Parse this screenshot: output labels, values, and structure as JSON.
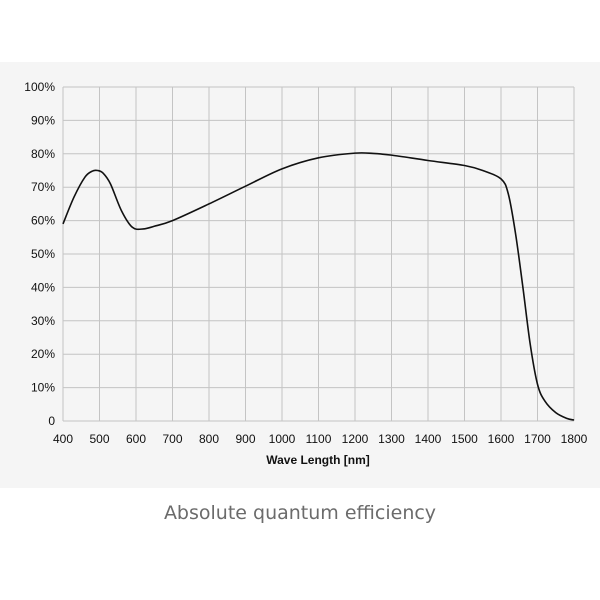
{
  "caption": "Absolute quantum efficiency",
  "chart_data": {
    "type": "line",
    "title": "",
    "xlabel": "Wave Length [nm]",
    "ylabel": "",
    "xlim": [
      400,
      1800
    ],
    "ylim": [
      0,
      100
    ],
    "x_ticks": [
      400,
      500,
      600,
      700,
      800,
      900,
      1000,
      1100,
      1200,
      1300,
      1400,
      1500,
      1600,
      1700,
      1800
    ],
    "x_tick_labels": [
      "400",
      "500",
      "600",
      "700",
      "800",
      "900",
      "1000",
      "1100",
      "1200",
      "1300",
      "1400",
      "1500",
      "1600",
      "1700",
      "1800"
    ],
    "y_ticks": [
      0,
      10,
      20,
      30,
      40,
      50,
      60,
      70,
      80,
      90,
      100
    ],
    "y_tick_labels": [
      "0",
      "10%",
      "20%",
      "30%",
      "40%",
      "50%",
      "60%",
      "70%",
      "80%",
      "90%",
      "100%"
    ],
    "grid": true,
    "line_color": "#111111",
    "grid_color": "#c4c4c4",
    "series": [
      {
        "x": [
          400,
          430,
          460,
          480,
          495,
          510,
          530,
          560,
          590,
          620,
          650,
          700,
          800,
          900,
          1000,
          1100,
          1200,
          1250,
          1300,
          1400,
          1500,
          1550,
          1600,
          1620,
          1640,
          1660,
          1680,
          1700,
          1720,
          1750,
          1780,
          1800
        ],
        "y": [
          59,
          67,
          73,
          74.8,
          75,
          74.2,
          71,
          63,
          58,
          57.5,
          58.3,
          60,
          65,
          70.3,
          75.5,
          78.8,
          80.2,
          80.1,
          79.6,
          78,
          76.5,
          75,
          72.5,
          68,
          56,
          40,
          23,
          11,
          6,
          2.5,
          0.8,
          0.3
        ]
      }
    ]
  }
}
